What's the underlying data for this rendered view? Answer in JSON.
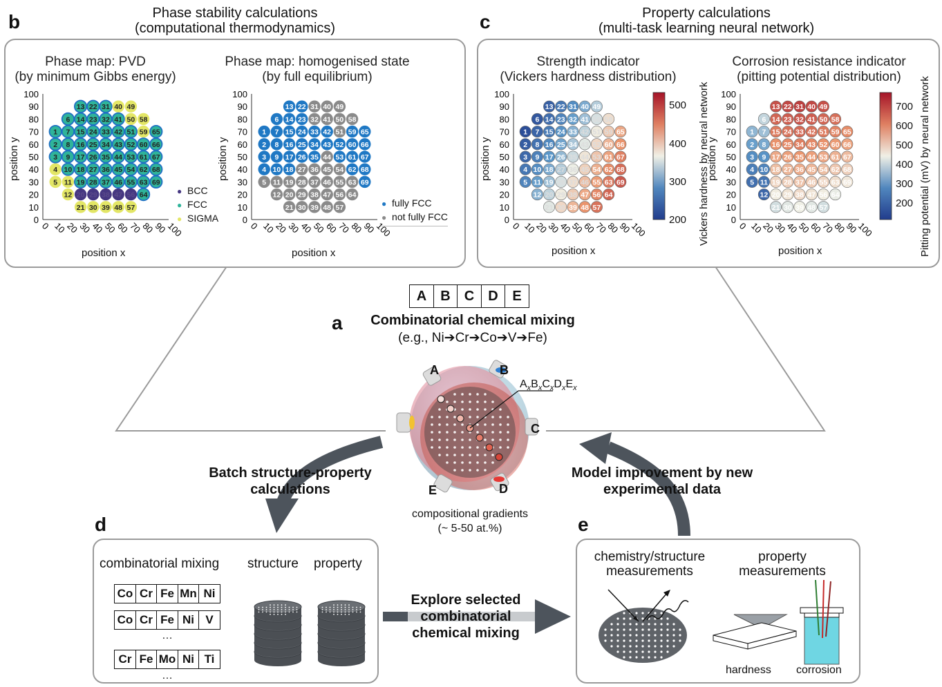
{
  "panel_labels": {
    "a": "a",
    "b": "b",
    "c": "c",
    "d": "d",
    "e": "e"
  },
  "panel_b": {
    "title_line1": "Phase stability calculations",
    "title_line2": "(computational thermodynamics)",
    "map1_title1": "Phase map: PVD",
    "map1_title2": "(by minimum Gibbs energy)",
    "map2_title1": "Phase map: homogenised state",
    "map2_title2": "(by full equilibrium)",
    "legend1": [
      "BCC",
      "FCC",
      "SIGMA"
    ],
    "legend2": [
      "fully FCC",
      "not fully FCC"
    ],
    "xlabel": "position x",
    "ylabel": "position y"
  },
  "panel_c": {
    "title_line1": "Property calculations",
    "title_line2": "(multi-task learning neural network)",
    "map1_title1": "Strength indicator",
    "map1_title2": "(Vickers hardness distribution)",
    "map2_title1": "Corrosion resistance indicator",
    "map2_title2": "(pitting potential distribution)",
    "cbar1_label": "Vickers hardness by neural network",
    "cbar2_label": "Pitting potential (mV) by neural network",
    "cbar1_ticks": [
      "500",
      "400",
      "300",
      "200"
    ],
    "cbar2_ticks": [
      "700",
      "600",
      "500",
      "400",
      "300",
      "200"
    ],
    "xlabel": "position x",
    "ylabel": "position y"
  },
  "axis_ticks": [
    "0",
    "10",
    "20",
    "30",
    "40",
    "50",
    "60",
    "70",
    "80",
    "90",
    "100"
  ],
  "panel_a": {
    "elements": [
      "A",
      "B",
      "C",
      "D",
      "E"
    ],
    "heading": "Combinatorial chemical mixing",
    "example": "(e.g., Ni➔Cr➔Co➔V➔Fe)",
    "formula": "AxBxCxDxEx",
    "source_labels": [
      "A",
      "B",
      "C",
      "D",
      "E"
    ],
    "caption1": "compositional gradients",
    "caption2": "(~ 5-50 at.%)"
  },
  "arrows": {
    "left_line1": "Batch structure-property",
    "left_line2": "calculations",
    "right_line1": "Model improvement by new",
    "right_line2": "experimental data",
    "bottom_line1": "Explore selected",
    "bottom_line2": "combinatorial",
    "bottom_line3": "chemical mixing"
  },
  "panel_d": {
    "col1": "combinatorial mixing",
    "col2": "structure",
    "col3": "property",
    "rows": [
      [
        "Co",
        "Cr",
        "Fe",
        "Mn",
        "Ni"
      ],
      [
        "Co",
        "Cr",
        "Fe",
        "Ni",
        "V"
      ],
      [
        "Cr",
        "Fe",
        "Mo",
        "Ni",
        "Ti"
      ]
    ],
    "ellipsis": "…"
  },
  "panel_e": {
    "col1_line1": "chemistry/structure",
    "col1_line2": "measurements",
    "col2_line1": "property",
    "col2_line2": "measurements",
    "label_hardness": "hardness",
    "label_corrosion": "corrosion"
  },
  "colors": {
    "bcc": "#453781",
    "fcc": "#2fb49a",
    "sigma": "#e3e666",
    "fully_fcc": "#1f78c4",
    "not_fully_fcc": "#8a8a8a",
    "panel_border": "#9a9a9a",
    "arrow": "#4d545c"
  }
}
